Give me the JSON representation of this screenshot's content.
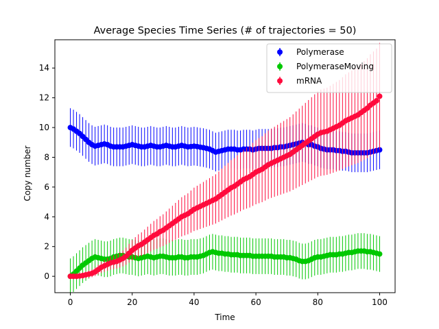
{
  "chart_data": {
    "type": "line",
    "title": "Average Species Time Series (# of trajectories = 50)",
    "xlabel": "Time",
    "ylabel": "Copy number",
    "xlim": [
      -5,
      105
    ],
    "ylim": [
      -1.1,
      15.9
    ],
    "xticks": [
      0,
      20,
      40,
      60,
      80,
      100
    ],
    "yticks": [
      0,
      2,
      4,
      6,
      8,
      10,
      12,
      14
    ],
    "legend_position": "top-right",
    "x_start": 0,
    "x_step": 1,
    "series": [
      {
        "name": "Polymerase",
        "color": "#0000ff",
        "points": [
          [
            0,
            10.0
          ],
          [
            1,
            9.9
          ],
          [
            2,
            9.75
          ],
          [
            3,
            9.6
          ],
          [
            4,
            9.4
          ],
          [
            5,
            9.2
          ],
          [
            6,
            9.0
          ],
          [
            7,
            8.85
          ],
          [
            8,
            8.75
          ],
          [
            9,
            8.8
          ],
          [
            10,
            8.85
          ],
          [
            11,
            8.9
          ],
          [
            12,
            8.85
          ],
          [
            13,
            8.75
          ],
          [
            14,
            8.7
          ],
          [
            15,
            8.7
          ],
          [
            16,
            8.7
          ],
          [
            17,
            8.7
          ],
          [
            18,
            8.75
          ],
          [
            19,
            8.8
          ],
          [
            20,
            8.85
          ],
          [
            21,
            8.8
          ],
          [
            22,
            8.75
          ],
          [
            23,
            8.7
          ],
          [
            24,
            8.7
          ],
          [
            25,
            8.75
          ],
          [
            26,
            8.8
          ],
          [
            27,
            8.75
          ],
          [
            28,
            8.7
          ],
          [
            29,
            8.7
          ],
          [
            30,
            8.75
          ],
          [
            31,
            8.8
          ],
          [
            32,
            8.75
          ],
          [
            33,
            8.7
          ],
          [
            34,
            8.7
          ],
          [
            35,
            8.75
          ],
          [
            36,
            8.8
          ],
          [
            37,
            8.75
          ],
          [
            38,
            8.7
          ],
          [
            39,
            8.72
          ],
          [
            40,
            8.75
          ],
          [
            41,
            8.72
          ],
          [
            42,
            8.68
          ],
          [
            43,
            8.65
          ],
          [
            44,
            8.6
          ],
          [
            45,
            8.55
          ],
          [
            46,
            8.45
          ],
          [
            47,
            8.35
          ],
          [
            48,
            8.4
          ],
          [
            49,
            8.45
          ],
          [
            50,
            8.5
          ],
          [
            51,
            8.55
          ],
          [
            52,
            8.55
          ],
          [
            53,
            8.55
          ],
          [
            54,
            8.5
          ],
          [
            55,
            8.5
          ],
          [
            56,
            8.55
          ],
          [
            57,
            8.55
          ],
          [
            58,
            8.55
          ],
          [
            59,
            8.5
          ],
          [
            60,
            8.55
          ],
          [
            61,
            8.6
          ],
          [
            62,
            8.6
          ],
          [
            63,
            8.6
          ],
          [
            64,
            8.6
          ],
          [
            65,
            8.6
          ],
          [
            66,
            8.65
          ],
          [
            67,
            8.65
          ],
          [
            68,
            8.7
          ],
          [
            69,
            8.7
          ],
          [
            70,
            8.75
          ],
          [
            71,
            8.8
          ],
          [
            72,
            8.85
          ],
          [
            73,
            8.9
          ],
          [
            74,
            8.95
          ],
          [
            75,
            9.0
          ],
          [
            76,
            8.95
          ],
          [
            77,
            8.85
          ],
          [
            78,
            8.85
          ],
          [
            79,
            8.75
          ],
          [
            80,
            8.7
          ],
          [
            81,
            8.6
          ],
          [
            82,
            8.55
          ],
          [
            83,
            8.5
          ],
          [
            84,
            8.5
          ],
          [
            85,
            8.5
          ],
          [
            86,
            8.45
          ],
          [
            87,
            8.45
          ],
          [
            88,
            8.4
          ],
          [
            89,
            8.4
          ],
          [
            90,
            8.35
          ],
          [
            91,
            8.3
          ],
          [
            92,
            8.3
          ],
          [
            93,
            8.3
          ],
          [
            94,
            8.3
          ],
          [
            95,
            8.3
          ],
          [
            96,
            8.3
          ],
          [
            97,
            8.35
          ],
          [
            98,
            8.4
          ],
          [
            99,
            8.45
          ],
          [
            100,
            8.5
          ]
        ],
        "error": 1.3
      },
      {
        "name": "PolymeraseMoving",
        "color": "#00c800",
        "points": [
          [
            0,
            0.0
          ],
          [
            1,
            0.15
          ],
          [
            2,
            0.35
          ],
          [
            3,
            0.55
          ],
          [
            4,
            0.75
          ],
          [
            5,
            0.9
          ],
          [
            6,
            1.05
          ],
          [
            7,
            1.2
          ],
          [
            8,
            1.3
          ],
          [
            9,
            1.25
          ],
          [
            10,
            1.2
          ],
          [
            11,
            1.15
          ],
          [
            12,
            1.15
          ],
          [
            13,
            1.2
          ],
          [
            14,
            1.3
          ],
          [
            15,
            1.35
          ],
          [
            16,
            1.4
          ],
          [
            17,
            1.4
          ],
          [
            18,
            1.35
          ],
          [
            19,
            1.3
          ],
          [
            20,
            1.3
          ],
          [
            21,
            1.25
          ],
          [
            22,
            1.2
          ],
          [
            23,
            1.25
          ],
          [
            24,
            1.3
          ],
          [
            25,
            1.35
          ],
          [
            26,
            1.3
          ],
          [
            27,
            1.25
          ],
          [
            28,
            1.3
          ],
          [
            29,
            1.35
          ],
          [
            30,
            1.35
          ],
          [
            31,
            1.3
          ],
          [
            32,
            1.25
          ],
          [
            33,
            1.25
          ],
          [
            34,
            1.25
          ],
          [
            35,
            1.3
          ],
          [
            36,
            1.3
          ],
          [
            37,
            1.25
          ],
          [
            38,
            1.25
          ],
          [
            39,
            1.3
          ],
          [
            40,
            1.3
          ],
          [
            41,
            1.3
          ],
          [
            42,
            1.35
          ],
          [
            43,
            1.4
          ],
          [
            44,
            1.5
          ],
          [
            45,
            1.6
          ],
          [
            46,
            1.65
          ],
          [
            47,
            1.6
          ],
          [
            48,
            1.55
          ],
          [
            49,
            1.55
          ],
          [
            50,
            1.5
          ],
          [
            51,
            1.5
          ],
          [
            52,
            1.45
          ],
          [
            53,
            1.45
          ],
          [
            54,
            1.45
          ],
          [
            55,
            1.4
          ],
          [
            56,
            1.4
          ],
          [
            57,
            1.4
          ],
          [
            58,
            1.4
          ],
          [
            59,
            1.35
          ],
          [
            60,
            1.35
          ],
          [
            61,
            1.35
          ],
          [
            62,
            1.35
          ],
          [
            63,
            1.35
          ],
          [
            64,
            1.35
          ],
          [
            65,
            1.35
          ],
          [
            66,
            1.3
          ],
          [
            67,
            1.3
          ],
          [
            68,
            1.3
          ],
          [
            69,
            1.3
          ],
          [
            70,
            1.25
          ],
          [
            71,
            1.25
          ],
          [
            72,
            1.2
          ],
          [
            73,
            1.15
          ],
          [
            74,
            1.05
          ],
          [
            75,
            1.0
          ],
          [
            76,
            1.0
          ],
          [
            77,
            1.05
          ],
          [
            78,
            1.15
          ],
          [
            79,
            1.25
          ],
          [
            80,
            1.3
          ],
          [
            81,
            1.3
          ],
          [
            82,
            1.35
          ],
          [
            83,
            1.4
          ],
          [
            84,
            1.45
          ],
          [
            85,
            1.45
          ],
          [
            86,
            1.45
          ],
          [
            87,
            1.5
          ],
          [
            88,
            1.5
          ],
          [
            89,
            1.55
          ],
          [
            90,
            1.6
          ],
          [
            91,
            1.6
          ],
          [
            92,
            1.65
          ],
          [
            93,
            1.7
          ],
          [
            94,
            1.7
          ],
          [
            95,
            1.7
          ],
          [
            96,
            1.65
          ],
          [
            97,
            1.65
          ],
          [
            98,
            1.6
          ],
          [
            99,
            1.55
          ],
          [
            100,
            1.5
          ]
        ],
        "error": 1.2
      },
      {
        "name": "mRNA",
        "color": "#ff0a3c",
        "points": [
          [
            0,
            0.0
          ],
          [
            1,
            0.0
          ],
          [
            2,
            0.0
          ],
          [
            3,
            0.02
          ],
          [
            4,
            0.05
          ],
          [
            5,
            0.1
          ],
          [
            6,
            0.15
          ],
          [
            7,
            0.2
          ],
          [
            8,
            0.3
          ],
          [
            9,
            0.45
          ],
          [
            10,
            0.6
          ],
          [
            11,
            0.7
          ],
          [
            12,
            0.8
          ],
          [
            13,
            0.9
          ],
          [
            14,
            0.95
          ],
          [
            15,
            1.0
          ],
          [
            16,
            1.1
          ],
          [
            17,
            1.2
          ],
          [
            18,
            1.35
          ],
          [
            19,
            1.55
          ],
          [
            20,
            1.75
          ],
          [
            21,
            1.9
          ],
          [
            22,
            2.05
          ],
          [
            23,
            2.15
          ],
          [
            24,
            2.3
          ],
          [
            25,
            2.45
          ],
          [
            26,
            2.6
          ],
          [
            27,
            2.75
          ],
          [
            28,
            2.85
          ],
          [
            29,
            3.0
          ],
          [
            30,
            3.1
          ],
          [
            31,
            3.25
          ],
          [
            32,
            3.4
          ],
          [
            33,
            3.55
          ],
          [
            34,
            3.7
          ],
          [
            35,
            3.85
          ],
          [
            36,
            4.0
          ],
          [
            37,
            4.1
          ],
          [
            38,
            4.2
          ],
          [
            39,
            4.35
          ],
          [
            40,
            4.5
          ],
          [
            41,
            4.6
          ],
          [
            42,
            4.7
          ],
          [
            43,
            4.8
          ],
          [
            44,
            4.9
          ],
          [
            45,
            5.0
          ],
          [
            46,
            5.1
          ],
          [
            47,
            5.2
          ],
          [
            48,
            5.35
          ],
          [
            49,
            5.5
          ],
          [
            50,
            5.65
          ],
          [
            51,
            5.8
          ],
          [
            52,
            5.95
          ],
          [
            53,
            6.05
          ],
          [
            54,
            6.2
          ],
          [
            55,
            6.35
          ],
          [
            56,
            6.5
          ],
          [
            57,
            6.6
          ],
          [
            58,
            6.7
          ],
          [
            59,
            6.85
          ],
          [
            60,
            7.0
          ],
          [
            61,
            7.1
          ],
          [
            62,
            7.2
          ],
          [
            63,
            7.35
          ],
          [
            64,
            7.5
          ],
          [
            65,
            7.6
          ],
          [
            66,
            7.7
          ],
          [
            67,
            7.8
          ],
          [
            68,
            7.9
          ],
          [
            69,
            8.0
          ],
          [
            70,
            8.1
          ],
          [
            71,
            8.2
          ],
          [
            72,
            8.35
          ],
          [
            73,
            8.5
          ],
          [
            74,
            8.65
          ],
          [
            75,
            8.8
          ],
          [
            76,
            8.95
          ],
          [
            77,
            9.1
          ],
          [
            78,
            9.25
          ],
          [
            79,
            9.4
          ],
          [
            80,
            9.55
          ],
          [
            81,
            9.65
          ],
          [
            82,
            9.7
          ],
          [
            83,
            9.75
          ],
          [
            84,
            9.85
          ],
          [
            85,
            9.95
          ],
          [
            86,
            10.05
          ],
          [
            87,
            10.15
          ],
          [
            88,
            10.3
          ],
          [
            89,
            10.45
          ],
          [
            90,
            10.55
          ],
          [
            91,
            10.65
          ],
          [
            92,
            10.75
          ],
          [
            93,
            10.85
          ],
          [
            94,
            11.0
          ],
          [
            95,
            11.15
          ],
          [
            96,
            11.3
          ],
          [
            97,
            11.5
          ],
          [
            98,
            11.65
          ],
          [
            99,
            11.8
          ],
          [
            100,
            12.1
          ]
        ],
        "error_mode": "grow",
        "error_base": 0.2,
        "error_scale": 0.28
      }
    ]
  }
}
